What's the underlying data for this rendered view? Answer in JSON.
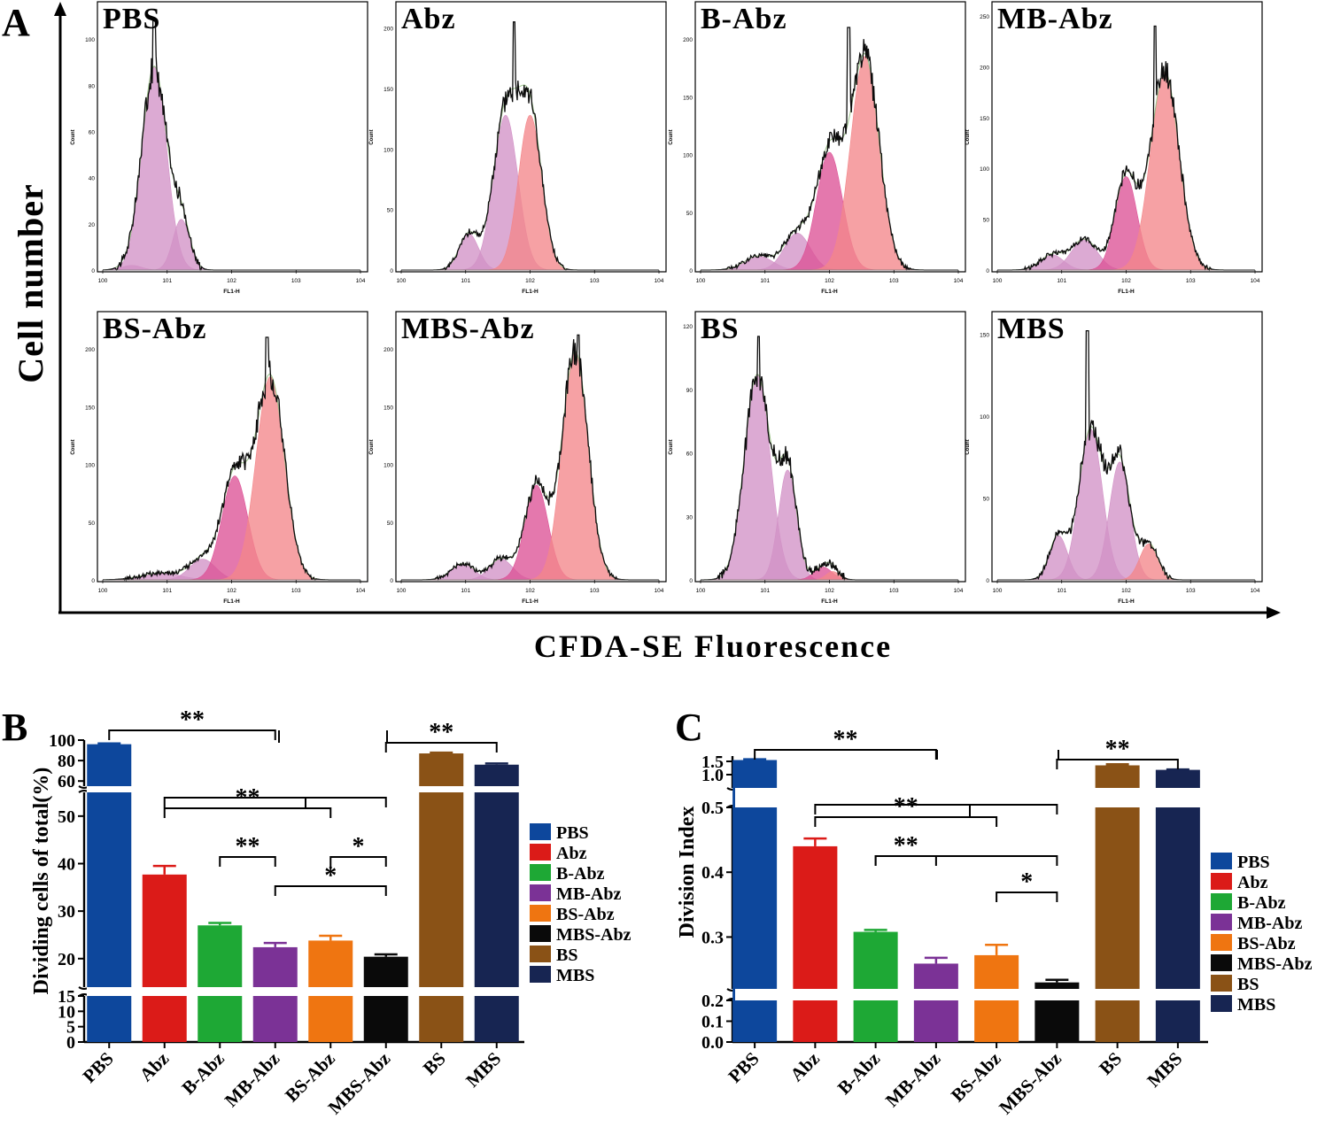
{
  "figure": {
    "panel_a_letter": "A",
    "panel_b_letter": "B",
    "panel_c_letter": "C",
    "a_ylabel": "Cell number",
    "a_xlabel": "CFDA-SE Fluorescence",
    "fl_axis_label": "FL1-H",
    "count_axis_label": "Count",
    "colors": {
      "PBS": "#0d479c",
      "Abz": "#db1b18",
      "B-Abz": "#1ea835",
      "MB-Abz": "#7b3296",
      "BS-Abz": "#ef7511",
      "MBS-Abz": "#0a0a0a",
      "BS": "#8a5216",
      "MBS": "#172552",
      "fit_a": "#d292c6",
      "fit_b": "#dd5296",
      "fit_c": "#f3868a"
    }
  },
  "chart_data": [
    {
      "type": "histogram-grid",
      "title": "A",
      "xlabel": "CFDA-SE Fluorescence",
      "ylabel": "Cell number",
      "x_axis_label": "FL1-H",
      "y_axis_label": "Count",
      "x_ticks": [
        "10^0",
        "10^1",
        "10^2",
        "10^3",
        "10^4"
      ],
      "panels": [
        {
          "name": "PBS",
          "ymax": 110,
          "yticks": [
            0,
            20,
            40,
            60,
            80,
            100
          ],
          "peak_x": 0.8,
          "peak_y": 108,
          "fits": [
            {
              "mu": 0.8,
              "sd": 0.19,
              "h": 88,
              "fill": "fit_a"
            },
            {
              "mu": 1.22,
              "sd": 0.13,
              "h": 22,
              "fill": "fit_a"
            },
            {
              "mu": 0.45,
              "sd": 0.15,
              "h": 2,
              "fill": "fit_a"
            }
          ]
        },
        {
          "name": "Abz",
          "ymax": 210,
          "yticks": [
            0,
            50,
            100,
            150,
            200
          ],
          "peak_x": 1.75,
          "peak_y": 205,
          "fits": [
            {
              "mu": 1.05,
              "sd": 0.15,
              "h": 30,
              "fill": "fit_a"
            },
            {
              "mu": 1.62,
              "sd": 0.19,
              "h": 128,
              "fill": "fit_a"
            },
            {
              "mu": 2.0,
              "sd": 0.18,
              "h": 128,
              "fill": "fit_c"
            }
          ]
        },
        {
          "name": "B-Abz",
          "ymax": 220,
          "yticks": [
            0,
            50,
            100,
            150,
            200
          ],
          "peak_x": 2.3,
          "peak_y": 210,
          "fits": [
            {
              "mu": 0.9,
              "sd": 0.22,
              "h": 12,
              "fill": "fit_a"
            },
            {
              "mu": 1.5,
              "sd": 0.2,
              "h": 32,
              "fill": "fit_a"
            },
            {
              "mu": 2.0,
              "sd": 0.2,
              "h": 102,
              "fill": "fit_b"
            },
            {
              "mu": 2.55,
              "sd": 0.22,
              "h": 185,
              "fill": "fit_c"
            }
          ]
        },
        {
          "name": "MB-Abz",
          "ymax": 250,
          "yticks": [
            0,
            50,
            100,
            150,
            200,
            250
          ],
          "peak_x": 2.45,
          "peak_y": 240,
          "fits": [
            {
              "mu": 0.85,
              "sd": 0.18,
              "h": 15,
              "fill": "fit_a"
            },
            {
              "mu": 1.35,
              "sd": 0.2,
              "h": 30,
              "fill": "fit_a"
            },
            {
              "mu": 2.0,
              "sd": 0.17,
              "h": 92,
              "fill": "fit_b"
            },
            {
              "mu": 2.6,
              "sd": 0.22,
              "h": 195,
              "fill": "fit_c"
            }
          ]
        },
        {
          "name": "BS-Abz",
          "ymax": 220,
          "yticks": [
            0,
            50,
            100,
            150,
            200
          ],
          "peak_x": 2.55,
          "peak_y": 210,
          "fits": [
            {
              "mu": 0.9,
              "sd": 0.3,
              "h": 6,
              "fill": "fit_a"
            },
            {
              "mu": 1.55,
              "sd": 0.2,
              "h": 18,
              "fill": "fit_a"
            },
            {
              "mu": 2.05,
              "sd": 0.2,
              "h": 90,
              "fill": "fit_b"
            },
            {
              "mu": 2.6,
              "sd": 0.22,
              "h": 176,
              "fill": "fit_c"
            }
          ]
        },
        {
          "name": "MBS-Abz",
          "ymax": 220,
          "yticks": [
            0,
            50,
            100,
            150,
            200
          ],
          "peak_x": 2.75,
          "peak_y": 212,
          "fits": [
            {
              "mu": 0.95,
              "sd": 0.18,
              "h": 14,
              "fill": "fit_a"
            },
            {
              "mu": 1.55,
              "sd": 0.18,
              "h": 18,
              "fill": "fit_a"
            },
            {
              "mu": 2.1,
              "sd": 0.18,
              "h": 82,
              "fill": "fit_b"
            },
            {
              "mu": 2.7,
              "sd": 0.2,
              "h": 198,
              "fill": "fit_c"
            }
          ]
        },
        {
          "name": "BS",
          "ymax": 120,
          "yticks": [
            0,
            30,
            60,
            90,
            120
          ],
          "peak_x": 0.9,
          "peak_y": 115,
          "fits": [
            {
              "mu": 0.88,
              "sd": 0.2,
              "h": 97,
              "fill": "fit_a"
            },
            {
              "mu": 1.35,
              "sd": 0.14,
              "h": 52,
              "fill": "fit_a"
            },
            {
              "mu": 1.9,
              "sd": 0.14,
              "h": 6,
              "fill": "fit_b"
            },
            {
              "mu": 2.05,
              "sd": 0.1,
              "h": 4,
              "fill": "fit_c"
            }
          ]
        },
        {
          "name": "MBS",
          "ymax": 155,
          "yticks": [
            0,
            50,
            100,
            150
          ],
          "peak_x": 1.4,
          "peak_y": 152,
          "fits": [
            {
              "mu": 0.95,
              "sd": 0.14,
              "h": 27,
              "fill": "fit_a"
            },
            {
              "mu": 1.45,
              "sd": 0.18,
              "h": 92,
              "fill": "fit_a"
            },
            {
              "mu": 1.9,
              "sd": 0.16,
              "h": 72,
              "fill": "fit_a"
            },
            {
              "mu": 2.35,
              "sd": 0.14,
              "h": 22,
              "fill": "fit_c"
            }
          ]
        }
      ]
    },
    {
      "type": "bar",
      "title": "B",
      "ylabel": "Dividing cells of total(%)",
      "categories": [
        "PBS",
        "Abz",
        "B-Abz",
        "MB-Abz",
        "BS-Abz",
        "MBS-Abz",
        "BS",
        "MBS"
      ],
      "values": [
        96,
        37.7,
        27,
        22.4,
        23.8,
        20.4,
        87,
        76
      ],
      "errors": [
        0.8,
        1.8,
        0.5,
        0.9,
        1.0,
        0.5,
        0.8,
        1.2
      ],
      "axis_segments": [
        {
          "range": [
            0,
            15
          ],
          "ticks": [
            "0",
            "5",
            "10",
            "15"
          ]
        },
        {
          "range": [
            14,
            55
          ],
          "ticks": [
            "20",
            "30",
            "40",
            "50"
          ]
        },
        {
          "range": [
            55,
            100
          ],
          "ticks": [
            "60",
            "80",
            "100"
          ]
        }
      ],
      "significance": [
        {
          "from": "PBS",
          "to": "MB-Abz",
          "label": "**"
        },
        {
          "from": "MBS-Abz",
          "to": "MBS",
          "label": "**"
        },
        {
          "from": "Abz",
          "to": "MBS-Abz",
          "label": ""
        },
        {
          "from": "Abz",
          "to": "BS-Abz",
          "label": "**"
        },
        {
          "from": "B-Abz",
          "to": "MB-Abz",
          "label": "**"
        },
        {
          "from": "BS-Abz",
          "to": "MBS-Abz",
          "label": "*"
        },
        {
          "from": "MB-Abz",
          "to": "MBS-Abz",
          "label": "*"
        }
      ]
    },
    {
      "type": "bar",
      "title": "C",
      "ylabel": "Division Index",
      "categories": [
        "PBS",
        "Abz",
        "B-Abz",
        "MB-Abz",
        "BS-Abz",
        "MBS-Abz",
        "BS",
        "MBS"
      ],
      "values": [
        1.55,
        0.44,
        0.308,
        0.259,
        0.272,
        0.23,
        1.35,
        1.18
      ],
      "errors": [
        0.03,
        0.012,
        0.003,
        0.009,
        0.016,
        0.004,
        0.04,
        0.015
      ],
      "axis_segments": [
        {
          "range": [
            0,
            0.2
          ],
          "ticks": [
            "0.0",
            "0.1",
            "0.2"
          ]
        },
        {
          "range": [
            0.22,
            0.5
          ],
          "ticks": [
            "0.3",
            "0.4",
            "0.5"
          ]
        },
        {
          "range": [
            0.5,
            1.7
          ],
          "ticks": [
            "1.0",
            "1.5"
          ]
        }
      ],
      "significance": [
        {
          "from": "PBS",
          "to": "MB-Abz",
          "label": "**"
        },
        {
          "from": "MBS-Abz",
          "to": "MBS",
          "label": "**"
        },
        {
          "from": "Abz",
          "to": "MBS-Abz",
          "label": ""
        },
        {
          "from": "Abz",
          "to": "BS-Abz",
          "label": "**"
        },
        {
          "from": "B-Abz",
          "to": "MBS-Abz",
          "label": ""
        },
        {
          "from": "B-Abz",
          "to": "MB-Abz",
          "label": "**"
        },
        {
          "from": "BS-Abz",
          "to": "MBS-Abz",
          "label": "*"
        },
        {
          "from": "MB-Abz",
          "to": "MBS-Abz",
          "label": "**"
        }
      ]
    }
  ]
}
